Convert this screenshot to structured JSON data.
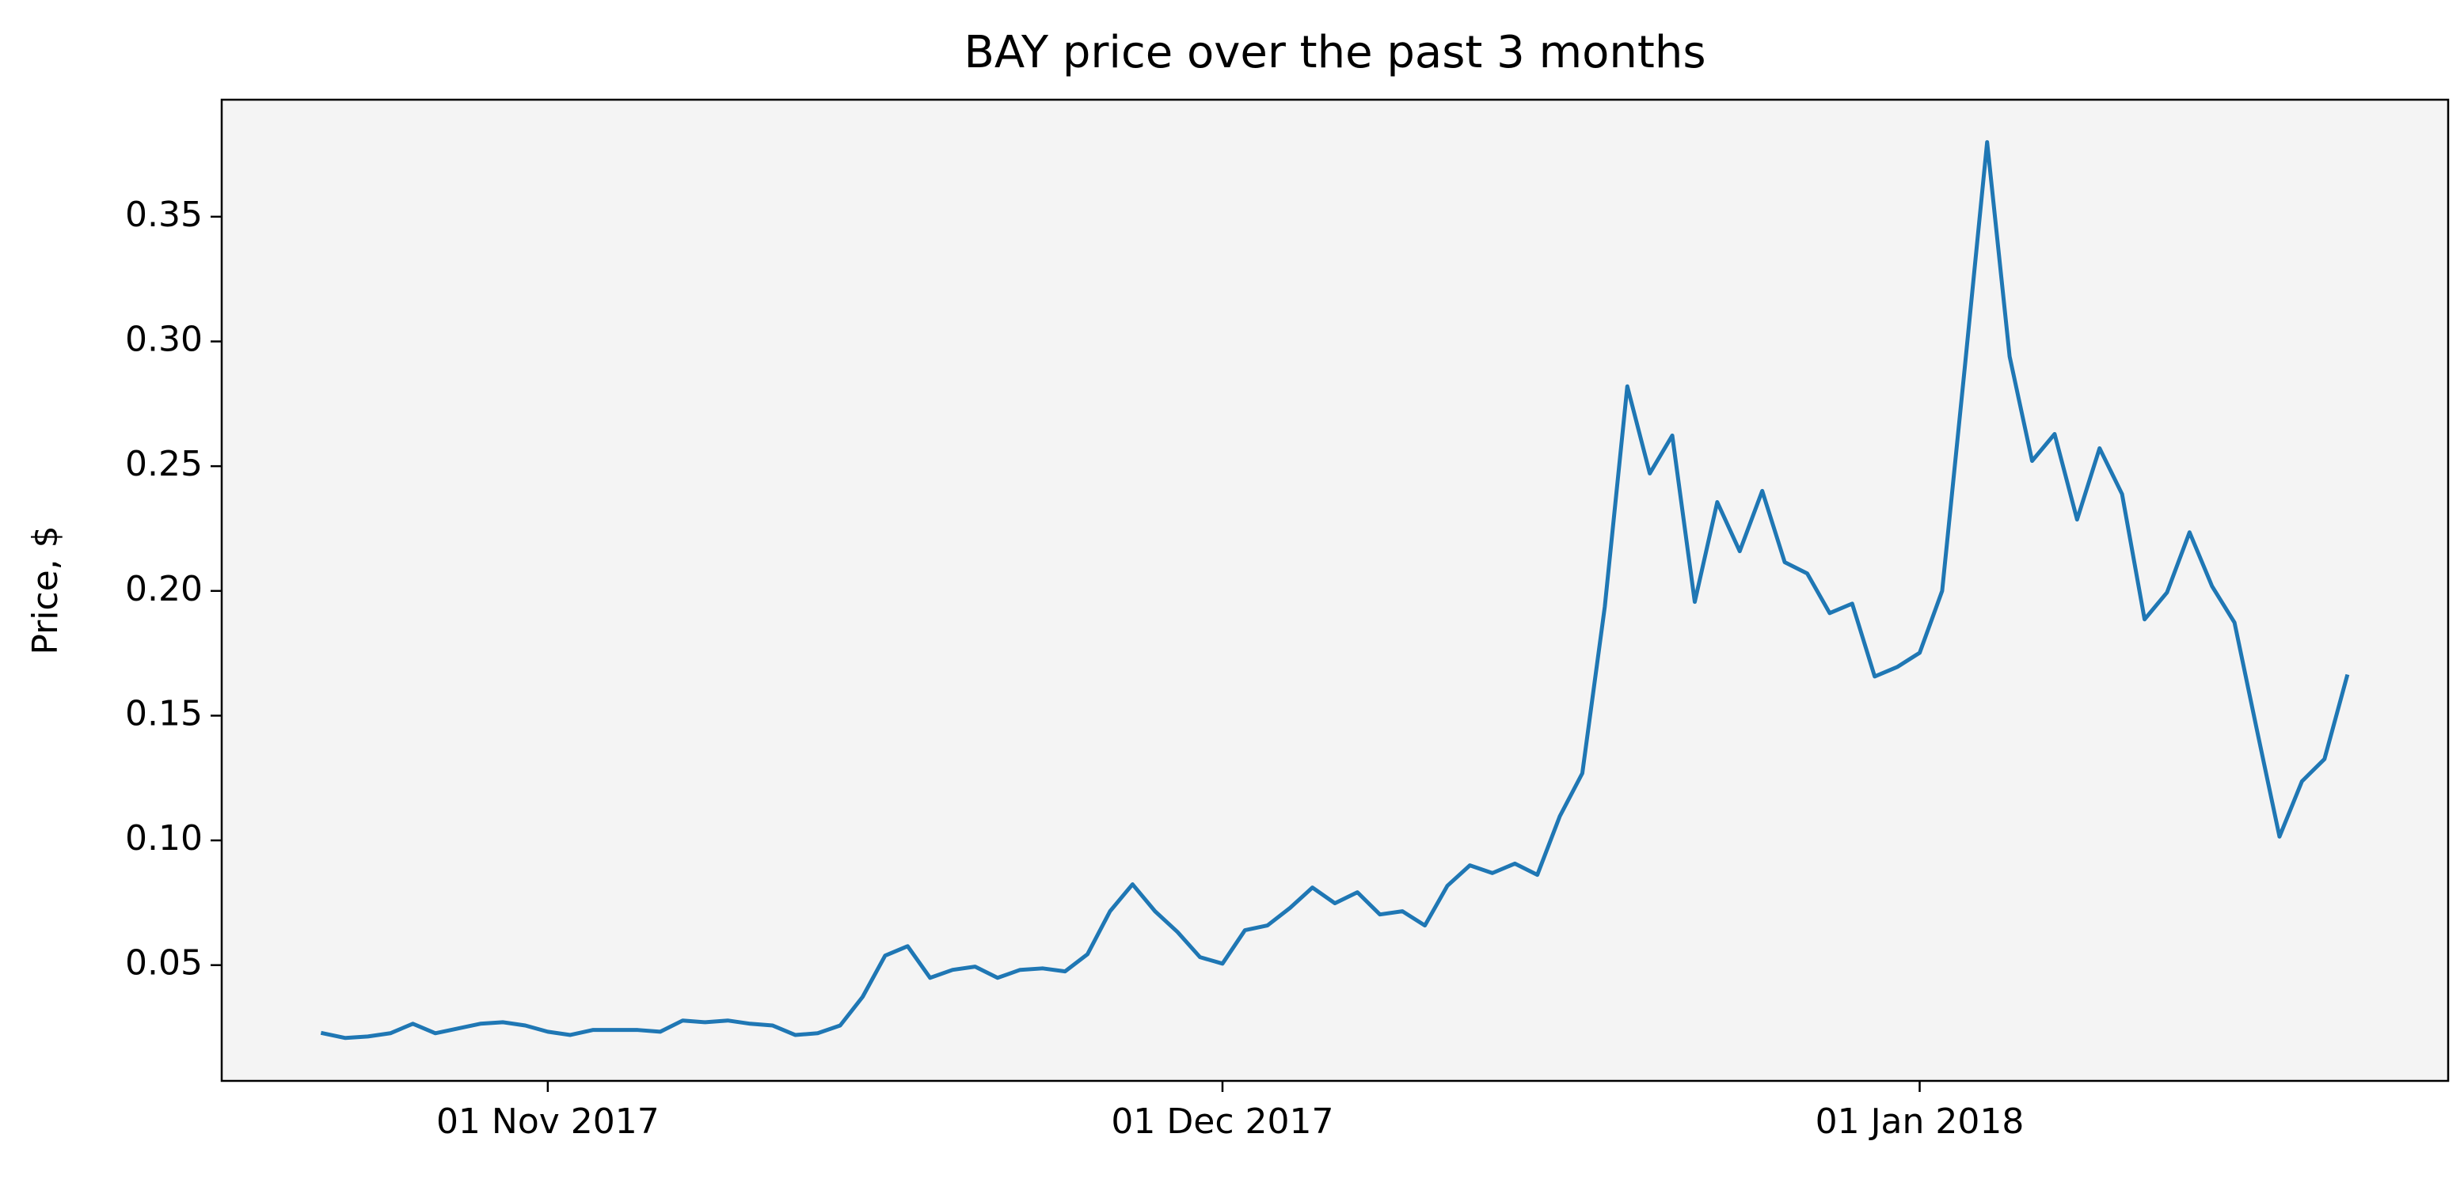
{
  "chart_data": {
    "type": "line",
    "title": "BAY price over the past 3 months",
    "y_label": "Price, $",
    "x": [
      "2017-10-22",
      "2017-10-23",
      "2017-10-24",
      "2017-10-25",
      "2017-10-26",
      "2017-10-27",
      "2017-10-28",
      "2017-10-29",
      "2017-10-30",
      "2017-10-31",
      "2017-11-01",
      "2017-11-02",
      "2017-11-03",
      "2017-11-04",
      "2017-11-05",
      "2017-11-06",
      "2017-11-07",
      "2017-11-08",
      "2017-11-09",
      "2017-11-10",
      "2017-11-11",
      "2017-11-12",
      "2017-11-13",
      "2017-11-14",
      "2017-11-15",
      "2017-11-16",
      "2017-11-17",
      "2017-11-18",
      "2017-11-19",
      "2017-11-20",
      "2017-11-21",
      "2017-11-22",
      "2017-11-23",
      "2017-11-24",
      "2017-11-25",
      "2017-11-26",
      "2017-11-27",
      "2017-11-28",
      "2017-11-29",
      "2017-11-30",
      "2017-12-01",
      "2017-12-02",
      "2017-12-03",
      "2017-12-04",
      "2017-12-05",
      "2017-12-06",
      "2017-12-07",
      "2017-12-08",
      "2017-12-09",
      "2017-12-10",
      "2017-12-11",
      "2017-12-12",
      "2017-12-13",
      "2017-12-14",
      "2017-12-15",
      "2017-12-16",
      "2017-12-17",
      "2017-12-18",
      "2017-12-19",
      "2017-12-20",
      "2017-12-21",
      "2017-12-22",
      "2017-12-23",
      "2017-12-24",
      "2017-12-25",
      "2017-12-26",
      "2017-12-27",
      "2017-12-28",
      "2017-12-29",
      "2017-12-30",
      "2017-12-31",
      "2018-01-01",
      "2018-01-02",
      "2018-01-03",
      "2018-01-04",
      "2018-01-05",
      "2018-01-06",
      "2018-01-07",
      "2018-01-08",
      "2018-01-09",
      "2018-01-10",
      "2018-01-11",
      "2018-01-12",
      "2018-01-13",
      "2018-01-14",
      "2018-01-15",
      "2018-01-16",
      "2018-01-17",
      "2018-01-18",
      "2018-01-19",
      "2018-01-20"
    ],
    "series": [
      {
        "name": "BAY",
        "color": "#1f77b4",
        "values": [
          0.0227,
          0.0208,
          0.0214,
          0.0227,
          0.0265,
          0.0227,
          0.0246,
          0.0265,
          0.0271,
          0.0258,
          0.0233,
          0.022,
          0.024,
          0.024,
          0.024,
          0.0233,
          0.0278,
          0.0271,
          0.0278,
          0.0265,
          0.0258,
          0.022,
          0.0227,
          0.0258,
          0.0373,
          0.0538,
          0.0576,
          0.0449,
          0.0481,
          0.0494,
          0.0449,
          0.0481,
          0.0487,
          0.0475,
          0.0544,
          0.0716,
          0.0824,
          0.0716,
          0.0633,
          0.0532,
          0.0506,
          0.064,
          0.0659,
          0.0729,
          0.0811,
          0.0748,
          0.0792,
          0.0703,
          0.0716,
          0.0659,
          0.0818,
          0.09,
          0.0869,
          0.0907,
          0.0862,
          0.1097,
          0.1269,
          0.1937,
          0.282,
          0.2471,
          0.2623,
          0.1956,
          0.2356,
          0.2159,
          0.2401,
          0.2115,
          0.207,
          0.1911,
          0.1949,
          0.1657,
          0.1695,
          0.1752,
          0.2,
          0.289,
          0.3799,
          0.294,
          0.2521,
          0.2629,
          0.2286,
          0.2572,
          0.2388,
          0.1886,
          0.1994,
          0.2235,
          0.2019,
          0.1873,
          0.1441,
          0.1015,
          0.1237,
          0.1326,
          0.1657
        ]
      }
    ],
    "xlim": [
      "2017-10-17T12:00:00Z",
      "2018-01-24T12:00:00Z"
    ],
    "xticks": [
      {
        "value": "2017-11-01",
        "label": "01 Nov 2017"
      },
      {
        "value": "2017-12-01",
        "label": "01 Dec 2017"
      },
      {
        "value": "2018-01-01",
        "label": "01 Jan 2018"
      }
    ],
    "ylim": [
      0.0036,
      0.3969
    ],
    "yticks": [
      0.05,
      {
        "value": 0.1,
        "label": "0.10"
      },
      0.15,
      {
        "value": 0.2,
        "label": "0.20"
      },
      0.25,
      {
        "value": 0.3,
        "label": "0.30"
      },
      0.35
    ],
    "plot_background": "#f4f4f4",
    "grid": false
  }
}
